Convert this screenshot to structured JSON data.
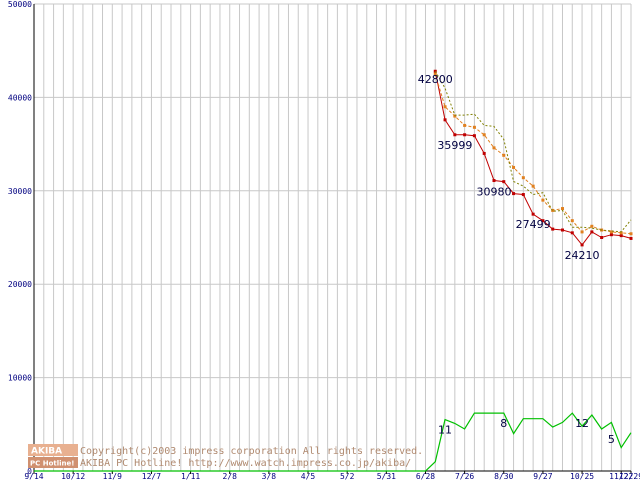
{
  "chart_data": {
    "type": "line",
    "ylim": [
      0,
      50000
    ],
    "y_ticks": [
      "0",
      "10000",
      "20000",
      "30000",
      "40000",
      "50000"
    ],
    "y_tick_values": [
      0,
      10000,
      20000,
      30000,
      40000,
      50000
    ],
    "x_tick_labels": [
      "9/14",
      "10/12",
      "11/9",
      "12/7",
      "1/11",
      "2/8",
      "3/8",
      "4/5",
      "5/2",
      "5/31",
      "6/28",
      "7/26",
      "8/30",
      "9/27",
      "10/25",
      "11/22",
      "12/29"
    ],
    "x_tick_index": [
      0,
      4,
      8,
      12,
      16,
      20,
      24,
      28,
      32,
      36,
      40,
      44,
      48,
      52,
      56,
      60,
      61
    ],
    "x_count": 62,
    "grid": true,
    "colors": {
      "min": "#c00000",
      "avg": "#e08020",
      "max": "#808000",
      "shops": "#00c000",
      "grid": "#c8c8c8",
      "axis": "#000000"
    },
    "series": [
      {
        "key": "min",
        "x": [
          41,
          42,
          43,
          44,
          45,
          46,
          47,
          48,
          49,
          50,
          51,
          52,
          53,
          54,
          55,
          56,
          57,
          58,
          59,
          60,
          61
        ],
        "values": [
          42800,
          37600,
          35999,
          35999,
          35900,
          34000,
          31100,
          30980,
          29700,
          29600,
          27499,
          26800,
          25900,
          25800,
          25500,
          24210,
          25600,
          25000,
          25300,
          25200,
          24900
        ]
      },
      {
        "key": "avg",
        "x": [
          41,
          42,
          43,
          44,
          45,
          46,
          47,
          48,
          49,
          50,
          51,
          52,
          53,
          54,
          55,
          56,
          57,
          58,
          59,
          60,
          61
        ],
        "values": [
          42500,
          39000,
          38000,
          37000,
          36800,
          36000,
          34600,
          33800,
          32500,
          31400,
          30500,
          29000,
          27900,
          28100,
          26800,
          25600,
          26200,
          25800,
          25600,
          25500,
          25400
        ]
      },
      {
        "key": "max",
        "x": [
          41,
          42,
          43,
          44,
          45,
          46,
          47,
          48,
          49,
          50,
          51,
          52,
          53,
          54,
          55,
          56,
          57,
          58,
          59,
          60,
          61
        ],
        "values": [
          42800,
          41000,
          38100,
          38100,
          38200,
          37000,
          36900,
          35500,
          31000,
          30500,
          29600,
          29800,
          27800,
          27900,
          26100,
          26100,
          26000,
          25800,
          25700,
          25600,
          26900
        ]
      },
      {
        "key": "shops",
        "x": [
          0,
          40,
          41,
          42,
          43,
          44,
          45,
          46,
          47,
          48,
          49,
          50,
          51,
          52,
          53,
          54,
          55,
          56,
          57,
          58,
          59,
          60,
          61
        ],
        "values": [
          0,
          0,
          1000,
          5500,
          5100,
          4500,
          6200,
          6200,
          6200,
          6200,
          4000,
          5600,
          5600,
          5600,
          4700,
          5200,
          6200,
          4800,
          6000,
          4500,
          5200,
          2500,
          4100
        ]
      }
    ],
    "annotations": [
      {
        "text": "42800",
        "x": 41,
        "y": 42800
      },
      {
        "text": "35999",
        "x": 43,
        "y": 35999
      },
      {
        "text": "30980",
        "x": 47,
        "y": 30980
      },
      {
        "text": "27499",
        "x": 51,
        "y": 27499
      },
      {
        "text": "24210",
        "x": 56,
        "y": 24210
      },
      {
        "text": "11",
        "x": 42,
        "y": 5500
      },
      {
        "text": "8",
        "x": 48,
        "y": 6200
      },
      {
        "text": "12",
        "x": 56,
        "y": 6200
      },
      {
        "text": "5",
        "x": 59,
        "y": 4500
      }
    ]
  },
  "watermark": {
    "logo_top": "AKIBA",
    "logo_bottom": "PC Hotline!",
    "line1": "Copyright(c)2003 impress corporation All rights reserved.",
    "line2": "AKIBA PC Hotline!  http://www.watch.impress.co.jp/akiba/"
  }
}
